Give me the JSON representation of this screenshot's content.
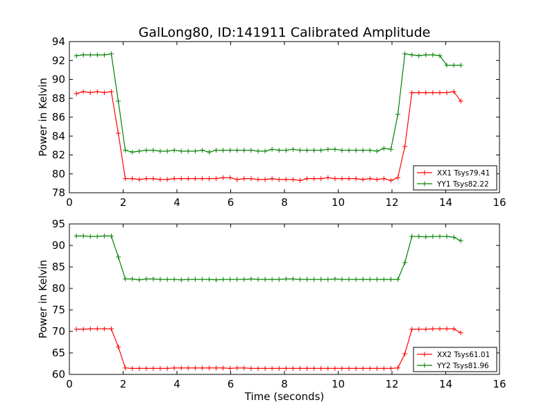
{
  "title": "GalLong80, ID:141911 Calibrated Amplitude",
  "chart_data": [
    {
      "type": "line",
      "title": "GalLong80, ID:141911 Calibrated Amplitude",
      "xlabel": "",
      "ylabel": "Power in Kelvin",
      "xlim": [
        0,
        16
      ],
      "ylim": [
        78,
        94
      ],
      "xticks": [
        "0",
        "2",
        "4",
        "6",
        "8",
        "10",
        "12",
        "14",
        "16"
      ],
      "yticks": [
        "78",
        "80",
        "82",
        "84",
        "86",
        "88",
        "90",
        "92",
        "94"
      ],
      "grid": false,
      "legend_position": "lower right",
      "x": [
        0.26,
        0.52,
        0.78,
        1.04,
        1.3,
        1.56,
        1.82,
        2.08,
        2.34,
        2.6,
        2.86,
        3.12,
        3.38,
        3.64,
        3.9,
        4.16,
        4.42,
        4.68,
        4.94,
        5.2,
        5.46,
        5.72,
        5.98,
        6.24,
        6.5,
        6.76,
        7.02,
        7.28,
        7.54,
        7.8,
        8.06,
        8.32,
        8.58,
        8.84,
        9.1,
        9.36,
        9.62,
        9.88,
        10.14,
        10.4,
        10.66,
        10.92,
        11.18,
        11.44,
        11.7,
        11.96,
        12.22,
        12.48,
        12.74,
        13.0,
        13.26,
        13.52,
        13.78,
        14.04,
        14.3,
        14.56
      ],
      "series": [
        {
          "name": "XX1 Tsys79.41",
          "color": "#ff0000",
          "values": [
            88.5,
            88.7,
            88.6,
            88.7,
            88.6,
            88.7,
            84.3,
            79.5,
            79.5,
            79.4,
            79.5,
            79.5,
            79.4,
            79.4,
            79.5,
            79.5,
            79.5,
            79.5,
            79.5,
            79.5,
            79.5,
            79.6,
            79.6,
            79.4,
            79.5,
            79.5,
            79.4,
            79.4,
            79.5,
            79.4,
            79.4,
            79.4,
            79.3,
            79.5,
            79.5,
            79.5,
            79.6,
            79.5,
            79.5,
            79.5,
            79.5,
            79.4,
            79.5,
            79.4,
            79.5,
            79.3,
            79.6,
            82.9,
            88.6,
            88.6,
            88.6,
            88.6,
            88.6,
            88.6,
            88.7,
            87.7
          ]
        },
        {
          "name": "YY1 Tsys82.22",
          "color": "#008000",
          "values": [
            92.5,
            92.6,
            92.6,
            92.6,
            92.6,
            92.7,
            87.7,
            82.5,
            82.3,
            82.4,
            82.5,
            82.5,
            82.4,
            82.4,
            82.5,
            82.4,
            82.4,
            82.4,
            82.5,
            82.3,
            82.5,
            82.5,
            82.5,
            82.5,
            82.5,
            82.5,
            82.4,
            82.4,
            82.6,
            82.5,
            82.5,
            82.6,
            82.5,
            82.5,
            82.5,
            82.5,
            82.6,
            82.6,
            82.5,
            82.5,
            82.5,
            82.5,
            82.5,
            82.4,
            82.7,
            82.6,
            86.3,
            92.7,
            92.6,
            92.5,
            92.6,
            92.6,
            92.5,
            91.5,
            91.5,
            91.5
          ]
        }
      ]
    },
    {
      "type": "line",
      "title": "",
      "xlabel": "Time (seconds)",
      "ylabel": "Power in Kelvin",
      "xlim": [
        0,
        16
      ],
      "ylim": [
        60,
        95
      ],
      "xticks": [
        "0",
        "2",
        "4",
        "6",
        "8",
        "10",
        "12",
        "14",
        "16"
      ],
      "yticks": [
        "60",
        "65",
        "70",
        "75",
        "80",
        "85",
        "90",
        "95"
      ],
      "grid": false,
      "legend_position": "lower right",
      "x": [
        0.26,
        0.52,
        0.78,
        1.04,
        1.3,
        1.56,
        1.82,
        2.08,
        2.34,
        2.6,
        2.86,
        3.12,
        3.38,
        3.64,
        3.9,
        4.16,
        4.42,
        4.68,
        4.94,
        5.2,
        5.46,
        5.72,
        5.98,
        6.24,
        6.5,
        6.76,
        7.02,
        7.28,
        7.54,
        7.8,
        8.06,
        8.32,
        8.58,
        8.84,
        9.1,
        9.36,
        9.62,
        9.88,
        10.14,
        10.4,
        10.66,
        10.92,
        11.18,
        11.44,
        11.7,
        11.96,
        12.22,
        12.48,
        12.74,
        13.0,
        13.26,
        13.52,
        13.78,
        14.04,
        14.3,
        14.56
      ],
      "series": [
        {
          "name": "XX2 Tsys61.01",
          "color": "#ff0000",
          "values": [
            70.5,
            70.5,
            70.6,
            70.6,
            70.6,
            70.6,
            66.4,
            61.5,
            61.4,
            61.4,
            61.4,
            61.4,
            61.4,
            61.4,
            61.5,
            61.5,
            61.5,
            61.5,
            61.5,
            61.5,
            61.5,
            61.5,
            61.4,
            61.5,
            61.5,
            61.4,
            61.4,
            61.4,
            61.4,
            61.4,
            61.4,
            61.4,
            61.4,
            61.4,
            61.4,
            61.4,
            61.4,
            61.4,
            61.4,
            61.4,
            61.4,
            61.4,
            61.4,
            61.4,
            61.4,
            61.4,
            61.5,
            64.8,
            70.5,
            70.5,
            70.5,
            70.6,
            70.6,
            70.6,
            70.6,
            69.7
          ]
        },
        {
          "name": "YY2 Tsys81.96",
          "color": "#008000",
          "values": [
            92.2,
            92.2,
            92.1,
            92.1,
            92.2,
            92.2,
            87.3,
            82.2,
            82.2,
            82.0,
            82.2,
            82.2,
            82.1,
            82.1,
            82.1,
            82.0,
            82.1,
            82.1,
            82.1,
            82.1,
            82.0,
            82.1,
            82.1,
            82.1,
            82.1,
            82.2,
            82.1,
            82.1,
            82.1,
            82.1,
            82.2,
            82.2,
            82.1,
            82.1,
            82.1,
            82.1,
            82.1,
            82.2,
            82.1,
            82.1,
            82.1,
            82.1,
            82.1,
            82.1,
            82.1,
            82.1,
            82.1,
            86.0,
            92.1,
            92.1,
            92.0,
            92.1,
            92.1,
            92.1,
            91.9,
            91.1
          ]
        }
      ]
    }
  ]
}
